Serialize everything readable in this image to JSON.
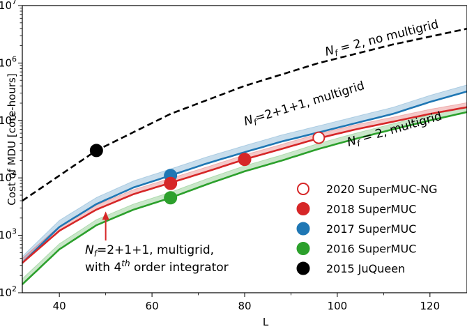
{
  "chart_data": {
    "type": "line",
    "xlabel": "L",
    "ylabel": "Cost of MDU [core-hours]",
    "xlim": [
      32,
      128
    ],
    "ylim": [
      100,
      10000000
    ],
    "yscale": "log",
    "x_ticks": [
      {
        "value": 40,
        "label": "40"
      },
      {
        "value": 60,
        "label": "60"
      },
      {
        "value": 80,
        "label": "80"
      },
      {
        "value": 100,
        "label": "100"
      },
      {
        "value": 120,
        "label": "120"
      }
    ],
    "y_ticks": [
      {
        "value": 100,
        "base": "10",
        "exp": "2"
      },
      {
        "value": 1000,
        "base": "10",
        "exp": "3"
      },
      {
        "value": 10000,
        "base": "10",
        "exp": "4"
      },
      {
        "value": 100000,
        "base": "10",
        "exp": "5"
      },
      {
        "value": 1000000,
        "base": "10",
        "exp": "6"
      },
      {
        "value": 10000000,
        "base": "10",
        "exp": "7"
      }
    ],
    "curves": [
      {
        "id": "nomg",
        "color": "#000000",
        "dashed": true,
        "band": false,
        "x": [
          32,
          48,
          64,
          80,
          96,
          112,
          128
        ],
        "y": [
          4000,
          30000,
          130000,
          400000,
          1000000,
          2100000,
          3950000
        ]
      },
      {
        "id": "mg211",
        "color": "#1f77b4",
        "dashed": false,
        "band": true,
        "band_up": 1.3,
        "band_down": 1.0,
        "x": [
          32,
          40,
          48,
          56,
          64,
          72,
          80,
          88,
          96,
          104,
          112,
          120,
          128
        ],
        "y": [
          330,
          1400,
          3500,
          6800,
          11000,
          18000,
          28000,
          43000,
          62000,
          90000,
          130000,
          210000,
          320000
        ]
      },
      {
        "id": "mg4th",
        "color": "#d62728",
        "dashed": false,
        "band": true,
        "band_up": 1.2,
        "band_down": 1.0,
        "x": [
          32,
          40,
          48,
          56,
          64,
          72,
          80,
          88,
          96,
          104,
          112,
          120,
          128
        ],
        "y": [
          330,
          1200,
          2800,
          5200,
          8200,
          13000,
          21000,
          32000,
          49000,
          70000,
          95000,
          130000,
          170000
        ]
      },
      {
        "id": "mg2",
        "color": "#2ca02c",
        "dashed": false,
        "band": true,
        "band_up": 1.25,
        "band_down": 1.0,
        "x": [
          32,
          40,
          48,
          56,
          64,
          72,
          80,
          88,
          96,
          104,
          112,
          120,
          128
        ],
        "y": [
          140,
          570,
          1500,
          2800,
          4500,
          7800,
          13000,
          20000,
          32000,
          48000,
          70000,
          100000,
          140000
        ]
      }
    ],
    "points": [
      {
        "x": 48,
        "y": 30000,
        "color": "#000000",
        "fill": true
      },
      {
        "x": 64,
        "y": 11000,
        "color": "#1f77b4",
        "fill": true
      },
      {
        "x": 64,
        "y": 8000,
        "color": "#d62728",
        "fill": true
      },
      {
        "x": 80,
        "y": 21000,
        "color": "#d62728",
        "fill": true
      },
      {
        "x": 64,
        "y": 4500,
        "color": "#2ca02c",
        "fill": true
      },
      {
        "x": 96,
        "y": 50000,
        "color": "#d62728",
        "fill": false
      }
    ],
    "annotations": {
      "nomg": {
        "pre": "N",
        "sub": "f",
        "post": " = 2, no multigrid",
        "color": "#000000"
      },
      "mg211": {
        "pre": "N",
        "sub": "f",
        "post": "=2+1+1, multigrid",
        "color": "#1f77b4"
      },
      "mg2": {
        "pre": "N",
        "sub": "f",
        "post": " = 2, multigrid",
        "color": "#2ca02c"
      },
      "mg4th": {
        "line1_pre": "N",
        "line1_sub": "f",
        "line1_post": "=2+1+1, multigrid,",
        "line2_pre": "with 4",
        "line2_sup": "th",
        "line2_post": " order integrator",
        "color": "#d62728",
        "arrow_x": 50,
        "arrow_y": 2600
      }
    },
    "legend": {
      "placement": "lower-right",
      "entries": [
        {
          "label": "2020 SuperMUC-NG",
          "color": "#d62728",
          "fill": false
        },
        {
          "label": "2018 SuperMUC",
          "color": "#d62728",
          "fill": true
        },
        {
          "label": "2017 SuperMUC",
          "color": "#1f77b4",
          "fill": true
        },
        {
          "label": "2016 SuperMUC",
          "color": "#2ca02c",
          "fill": true
        },
        {
          "label": "2015 JuQueen",
          "color": "#000000",
          "fill": true
        }
      ]
    }
  }
}
